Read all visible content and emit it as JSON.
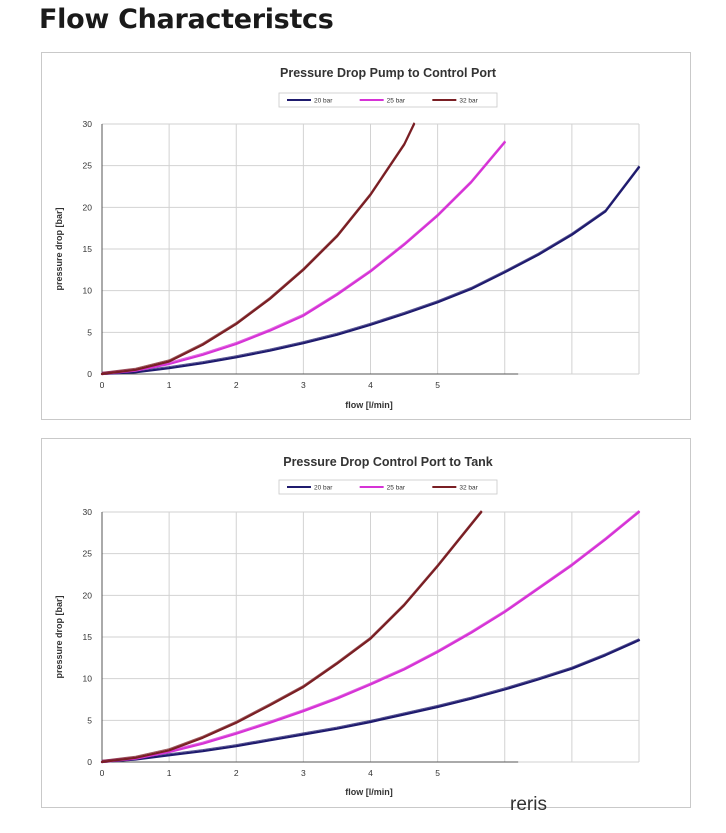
{
  "page": {
    "title": "Flow Characteristcs",
    "footer_text": "reris"
  },
  "chart_data": [
    {
      "type": "line",
      "title": "Pressure Drop Pump to Control Port",
      "xlabel": "flow [l/min]",
      "ylabel": "pressure drop [bar]",
      "xlim": [
        0,
        8
      ],
      "ylim": [
        0,
        30
      ],
      "x_ticks": [
        "0",
        "1",
        "2",
        "3",
        "4",
        "5"
      ],
      "y_ticks": [
        "0",
        "5",
        "10",
        "15",
        "20",
        "25",
        "30"
      ],
      "grid": true,
      "legend_position": "top-center",
      "series": [
        {
          "name": "20 bar",
          "color": "#1f1b6e",
          "x": [
            0,
            0.5,
            1,
            1.5,
            2,
            2.5,
            3,
            3.5,
            4,
            4.5,
            5,
            5.5,
            6,
            6.5,
            7,
            7.5,
            8
          ],
          "y": [
            0,
            0.2,
            0.7,
            1.3,
            2.0,
            2.8,
            3.7,
            4.7,
            5.9,
            7.2,
            8.6,
            10.2,
            12.2,
            14.3,
            16.7,
            19.5,
            24.8
          ]
        },
        {
          "name": "25 bar",
          "color": "#d633d6",
          "x": [
            0,
            0.5,
            1,
            1.5,
            2,
            2.5,
            3,
            3.5,
            4,
            4.5,
            5,
            5.5,
            6
          ],
          "y": [
            0,
            0.4,
            1.2,
            2.3,
            3.6,
            5.2,
            7.0,
            9.5,
            12.3,
            15.5,
            19.0,
            23.0,
            27.8
          ]
        },
        {
          "name": "32 bar",
          "color": "#7a1f24",
          "x": [
            0,
            0.5,
            1,
            1.5,
            2,
            2.5,
            3,
            3.5,
            4,
            4.5,
            4.65
          ],
          "y": [
            0,
            0.5,
            1.5,
            3.5,
            6.0,
            9.0,
            12.5,
            16.5,
            21.5,
            27.5,
            30
          ]
        }
      ]
    },
    {
      "type": "line",
      "title": "Pressure Drop Control Port to Tank",
      "xlabel": "flow [l/min]",
      "ylabel": "pressure drop [bar]",
      "xlim": [
        0,
        8
      ],
      "ylim": [
        0,
        30
      ],
      "x_ticks": [
        "0",
        "1",
        "2",
        "3",
        "4",
        "5"
      ],
      "y_ticks": [
        "0",
        "5",
        "10",
        "15",
        "20",
        "25",
        "30"
      ],
      "grid": true,
      "legend_position": "top-center",
      "series": [
        {
          "name": "20 bar",
          "color": "#1f1b6e",
          "x": [
            0,
            0.5,
            1,
            1.5,
            2,
            2.5,
            3,
            3.5,
            4,
            4.5,
            5,
            5.5,
            6,
            6.5,
            7,
            7.5,
            8
          ],
          "y": [
            0,
            0.3,
            0.8,
            1.3,
            1.9,
            2.6,
            3.3,
            4.0,
            4.8,
            5.7,
            6.6,
            7.6,
            8.7,
            9.9,
            11.2,
            12.8,
            14.6
          ]
        },
        {
          "name": "25 bar",
          "color": "#d633d6",
          "x": [
            0,
            0.5,
            1,
            1.5,
            2,
            2.5,
            3,
            3.5,
            4,
            4.5,
            5,
            5.5,
            6,
            6.5,
            7,
            7.5,
            8
          ],
          "y": [
            0,
            0.4,
            1.2,
            2.2,
            3.4,
            4.7,
            6.1,
            7.6,
            9.3,
            11.1,
            13.2,
            15.5,
            18.0,
            20.8,
            23.6,
            26.7,
            30.0
          ]
        },
        {
          "name": "32 bar",
          "color": "#7a1f24",
          "x": [
            0,
            0.5,
            1,
            1.5,
            2,
            2.5,
            3,
            3.5,
            4,
            4.5,
            5,
            5.5,
            5.65
          ],
          "y": [
            0,
            0.5,
            1.4,
            2.9,
            4.7,
            6.8,
            9.0,
            11.8,
            14.8,
            18.8,
            23.5,
            28.5,
            30
          ]
        }
      ]
    }
  ]
}
